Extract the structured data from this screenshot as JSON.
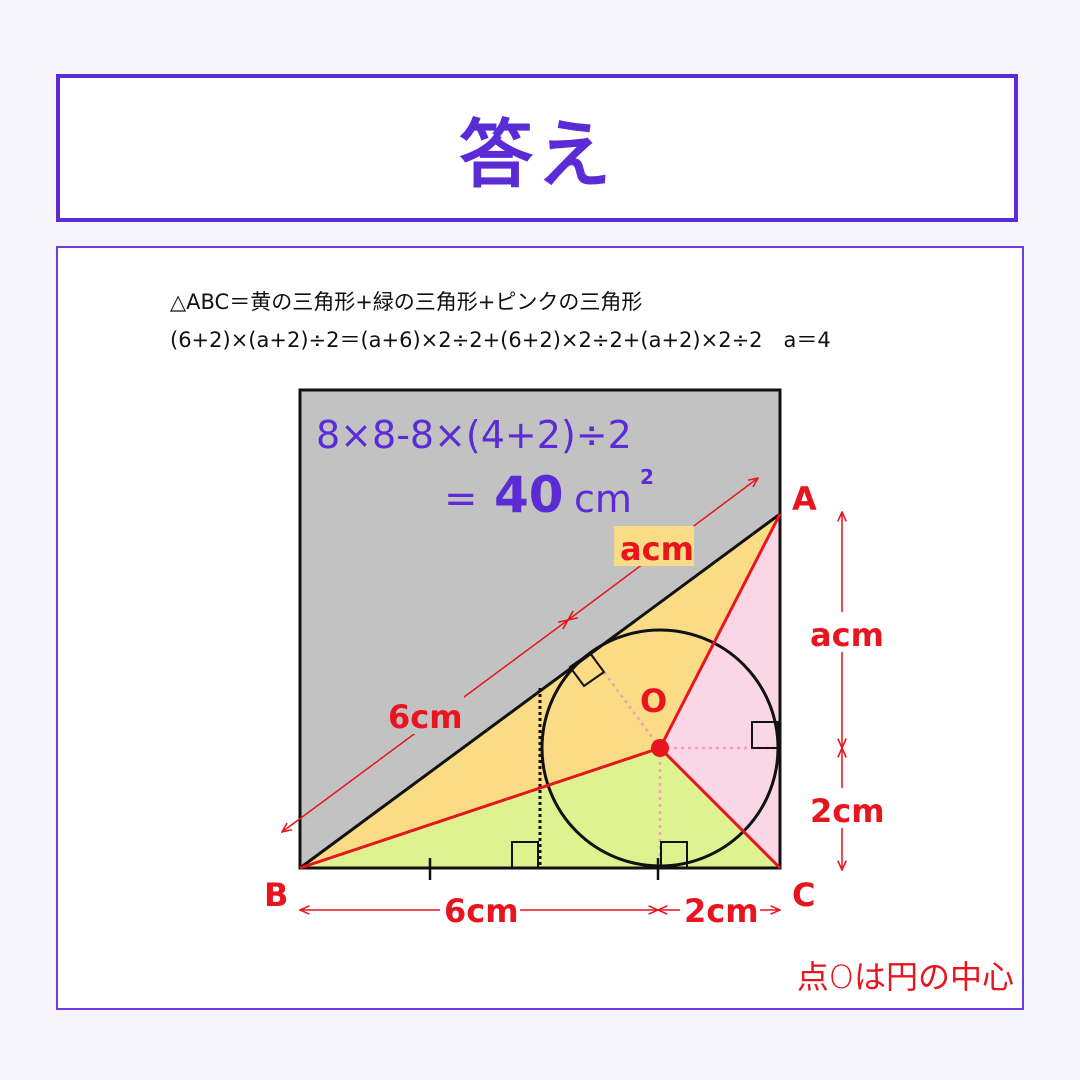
{
  "title": "答え",
  "formula_line1": "△ABC＝黄の三角形+緑の三角形+ピンクの三角形",
  "formula_line2": "(6+2)×(a+2)÷2＝(a+6)×2÷2+(6+2)×2÷2+(a+2)×2÷2　a＝4",
  "area_expr": "8×8-8×(4+2)÷2",
  "area_result_eq": "=",
  "area_result_value": "40",
  "area_result_unit": "cm",
  "area_result_exp": "2",
  "labels": {
    "A": "A",
    "B": "B",
    "C": "C",
    "O": "O"
  },
  "lengths": {
    "ab_upper": "acm",
    "ab_lower": "6cm",
    "right_upper": "acm",
    "right_lower": "2cm",
    "bottom_left": "6cm",
    "bottom_right": "2cm"
  },
  "note": "点Oは円の中心",
  "colors": {
    "accent": "#5b2bd6",
    "red": "#e8141e",
    "yellow": "#fbdc86",
    "green": "#def28f",
    "pink": "#fbd6e4",
    "gray": "#c2c2c2"
  }
}
